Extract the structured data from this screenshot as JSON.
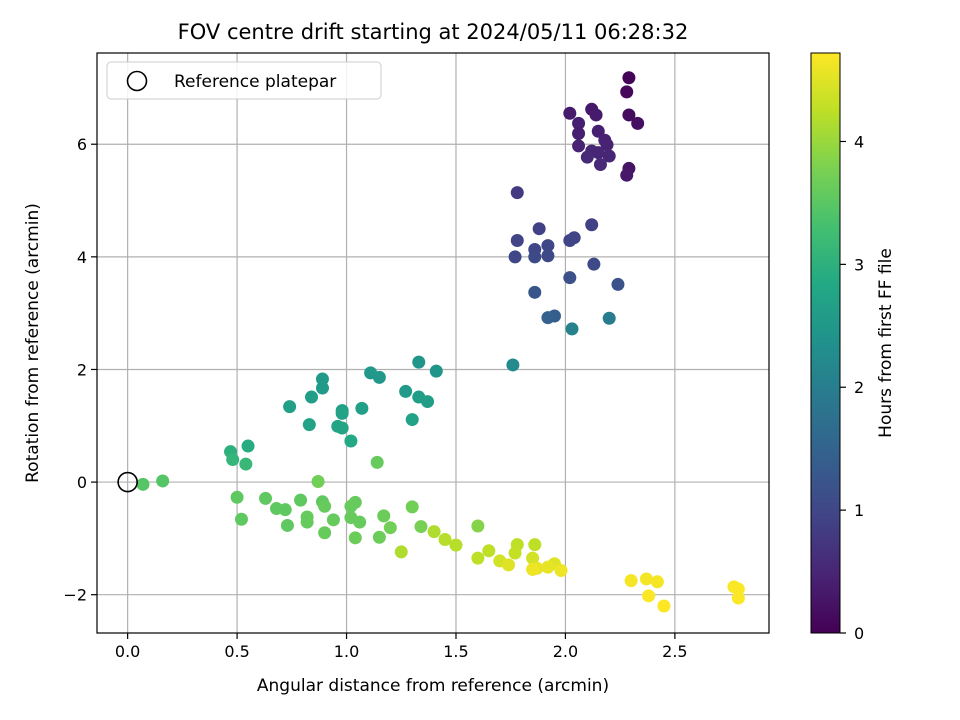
{
  "chart_data": {
    "type": "scatter",
    "title": "FOV centre drift starting at 2024/05/11 06:28:32",
    "xlabel": "Angular distance from reference (arcmin)",
    "ylabel": "Rotation from reference (arcmin)",
    "xlim": [
      -0.14,
      2.93
    ],
    "ylim": [
      -2.68,
      7.62
    ],
    "xticks": [
      0.0,
      0.5,
      1.0,
      1.5,
      2.0,
      2.5
    ],
    "yticks": [
      -2,
      0,
      2,
      4,
      6
    ],
    "xtick_labels": [
      "0.0",
      "0.5",
      "1.0",
      "1.5",
      "2.0",
      "2.5"
    ],
    "ytick_labels": [
      "−2",
      "0",
      "2",
      "4",
      "6"
    ],
    "grid": true,
    "legend": {
      "position": "top-left",
      "entries": [
        "Reference platepar"
      ]
    },
    "reference_point": {
      "x": 0.0,
      "y": 0.0
    },
    "colorbar": {
      "label": "Hours from first FF file",
      "colormap": "viridis",
      "range": [
        0,
        4.72
      ],
      "ticks": [
        0,
        1,
        2,
        3,
        4
      ],
      "tick_labels": [
        "0",
        "1",
        "2",
        "3",
        "4"
      ]
    },
    "series": [
      {
        "points": [
          {
            "x": 2.29,
            "y": 7.18,
            "c": 0.05
          },
          {
            "x": 2.28,
            "y": 6.93,
            "c": 0.1
          },
          {
            "x": 2.29,
            "y": 6.52,
            "c": 0.15
          },
          {
            "x": 2.33,
            "y": 6.37,
            "c": 0.2
          },
          {
            "x": 2.29,
            "y": 5.57,
            "c": 0.25
          },
          {
            "x": 2.28,
            "y": 5.45,
            "c": 0.3
          },
          {
            "x": 2.12,
            "y": 6.62,
            "c": 0.3
          },
          {
            "x": 2.14,
            "y": 6.52,
            "c": 0.35
          },
          {
            "x": 2.02,
            "y": 6.55,
            "c": 0.35
          },
          {
            "x": 2.06,
            "y": 6.37,
            "c": 0.4
          },
          {
            "x": 2.06,
            "y": 6.19,
            "c": 0.4
          },
          {
            "x": 2.15,
            "y": 6.23,
            "c": 0.4
          },
          {
            "x": 2.18,
            "y": 6.07,
            "c": 0.45
          },
          {
            "x": 2.06,
            "y": 5.97,
            "c": 0.45
          },
          {
            "x": 2.19,
            "y": 5.99,
            "c": 0.45
          },
          {
            "x": 2.12,
            "y": 5.88,
            "c": 0.5
          },
          {
            "x": 2.15,
            "y": 5.85,
            "c": 0.5
          },
          {
            "x": 2.2,
            "y": 5.79,
            "c": 0.5
          },
          {
            "x": 2.1,
            "y": 5.77,
            "c": 0.55
          },
          {
            "x": 2.16,
            "y": 5.64,
            "c": 0.55
          },
          {
            "x": 1.78,
            "y": 5.14,
            "c": 0.8
          },
          {
            "x": 2.12,
            "y": 4.57,
            "c": 0.9
          },
          {
            "x": 1.88,
            "y": 4.5,
            "c": 0.9
          },
          {
            "x": 2.04,
            "y": 4.34,
            "c": 0.95
          },
          {
            "x": 2.02,
            "y": 4.29,
            "c": 0.95
          },
          {
            "x": 1.78,
            "y": 4.29,
            "c": 0.95
          },
          {
            "x": 1.92,
            "y": 4.2,
            "c": 1.0
          },
          {
            "x": 1.86,
            "y": 4.13,
            "c": 1.0
          },
          {
            "x": 1.77,
            "y": 4.0,
            "c": 1.0
          },
          {
            "x": 1.86,
            "y": 4.0,
            "c": 1.05
          },
          {
            "x": 1.92,
            "y": 4.02,
            "c": 1.05
          },
          {
            "x": 2.13,
            "y": 3.87,
            "c": 1.05
          },
          {
            "x": 2.02,
            "y": 3.63,
            "c": 1.15
          },
          {
            "x": 2.24,
            "y": 3.51,
            "c": 1.2
          },
          {
            "x": 1.86,
            "y": 3.37,
            "c": 1.25
          },
          {
            "x": 1.95,
            "y": 2.95,
            "c": 1.4
          },
          {
            "x": 1.92,
            "y": 2.92,
            "c": 1.45
          },
          {
            "x": 2.2,
            "y": 2.91,
            "c": 1.95
          },
          {
            "x": 2.03,
            "y": 2.72,
            "c": 2.1
          },
          {
            "x": 1.76,
            "y": 2.08,
            "c": 2.25
          },
          {
            "x": 1.33,
            "y": 2.13,
            "c": 2.45
          },
          {
            "x": 1.41,
            "y": 1.97,
            "c": 2.45
          },
          {
            "x": 1.11,
            "y": 1.94,
            "c": 2.5
          },
          {
            "x": 1.15,
            "y": 1.86,
            "c": 2.5
          },
          {
            "x": 0.89,
            "y": 1.83,
            "c": 2.55
          },
          {
            "x": 0.89,
            "y": 1.67,
            "c": 2.55
          },
          {
            "x": 1.27,
            "y": 1.61,
            "c": 2.55
          },
          {
            "x": 0.84,
            "y": 1.51,
            "c": 2.6
          },
          {
            "x": 1.33,
            "y": 1.51,
            "c": 2.6
          },
          {
            "x": 1.37,
            "y": 1.43,
            "c": 2.6
          },
          {
            "x": 0.74,
            "y": 1.34,
            "c": 2.65
          },
          {
            "x": 1.07,
            "y": 1.31,
            "c": 2.65
          },
          {
            "x": 0.98,
            "y": 1.27,
            "c": 2.65
          },
          {
            "x": 0.98,
            "y": 1.22,
            "c": 2.7
          },
          {
            "x": 1.3,
            "y": 1.11,
            "c": 2.7
          },
          {
            "x": 0.83,
            "y": 1.02,
            "c": 2.7
          },
          {
            "x": 0.96,
            "y": 0.99,
            "c": 2.75
          },
          {
            "x": 0.98,
            "y": 0.96,
            "c": 2.75
          },
          {
            "x": 1.02,
            "y": 0.73,
            "c": 2.85
          },
          {
            "x": 0.55,
            "y": 0.64,
            "c": 2.9
          },
          {
            "x": 0.47,
            "y": 0.54,
            "c": 3.0
          },
          {
            "x": 0.48,
            "y": 0.4,
            "c": 3.1
          },
          {
            "x": 0.54,
            "y": 0.32,
            "c": 3.15
          },
          {
            "x": 1.14,
            "y": 0.35,
            "c": 3.6
          },
          {
            "x": 0.07,
            "y": -0.04,
            "c": 3.45
          },
          {
            "x": 0.16,
            "y": 0.02,
            "c": 3.45
          },
          {
            "x": 0.87,
            "y": 0.01,
            "c": 3.7
          },
          {
            "x": 0.5,
            "y": -0.27,
            "c": 3.55
          },
          {
            "x": 0.63,
            "y": -0.29,
            "c": 3.55
          },
          {
            "x": 0.79,
            "y": -0.32,
            "c": 3.55
          },
          {
            "x": 0.89,
            "y": -0.35,
            "c": 3.55
          },
          {
            "x": 1.04,
            "y": -0.36,
            "c": 3.6
          },
          {
            "x": 1.02,
            "y": -0.43,
            "c": 3.6
          },
          {
            "x": 0.9,
            "y": -0.43,
            "c": 3.6
          },
          {
            "x": 0.68,
            "y": -0.47,
            "c": 3.55
          },
          {
            "x": 0.72,
            "y": -0.49,
            "c": 3.55
          },
          {
            "x": 1.3,
            "y": -0.44,
            "c": 3.7
          },
          {
            "x": 0.82,
            "y": -0.62,
            "c": 3.6
          },
          {
            "x": 1.17,
            "y": -0.6,
            "c": 3.65
          },
          {
            "x": 0.52,
            "y": -0.66,
            "c": 3.55
          },
          {
            "x": 1.02,
            "y": -0.63,
            "c": 3.6
          },
          {
            "x": 0.94,
            "y": -0.67,
            "c": 3.6
          },
          {
            "x": 0.82,
            "y": -0.71,
            "c": 3.6
          },
          {
            "x": 1.06,
            "y": -0.71,
            "c": 3.6
          },
          {
            "x": 0.73,
            "y": -0.77,
            "c": 3.55
          },
          {
            "x": 1.2,
            "y": -0.81,
            "c": 3.7
          },
          {
            "x": 1.34,
            "y": -0.79,
            "c": 3.75
          },
          {
            "x": 1.6,
            "y": -0.78,
            "c": 3.85
          },
          {
            "x": 1.4,
            "y": -0.88,
            "c": 4.15
          },
          {
            "x": 0.9,
            "y": -0.9,
            "c": 3.6
          },
          {
            "x": 1.15,
            "y": -0.98,
            "c": 3.65
          },
          {
            "x": 1.04,
            "y": -0.99,
            "c": 3.65
          },
          {
            "x": 1.45,
            "y": -1.02,
            "c": 4.2
          },
          {
            "x": 1.5,
            "y": -1.12,
            "c": 4.2
          },
          {
            "x": 1.78,
            "y": -1.11,
            "c": 4.25
          },
          {
            "x": 1.86,
            "y": -1.11,
            "c": 4.25
          },
          {
            "x": 1.25,
            "y": -1.24,
            "c": 4.15
          },
          {
            "x": 1.65,
            "y": -1.22,
            "c": 4.25
          },
          {
            "x": 1.77,
            "y": -1.26,
            "c": 4.3
          },
          {
            "x": 1.6,
            "y": -1.35,
            "c": 4.25
          },
          {
            "x": 1.7,
            "y": -1.4,
            "c": 4.4
          },
          {
            "x": 1.85,
            "y": -1.35,
            "c": 4.4
          },
          {
            "x": 1.74,
            "y": -1.47,
            "c": 4.5
          },
          {
            "x": 1.95,
            "y": -1.45,
            "c": 4.5
          },
          {
            "x": 1.92,
            "y": -1.51,
            "c": 4.55
          },
          {
            "x": 1.87,
            "y": -1.53,
            "c": 4.55
          },
          {
            "x": 1.85,
            "y": -1.55,
            "c": 4.6
          },
          {
            "x": 1.98,
            "y": -1.57,
            "c": 4.6
          },
          {
            "x": 2.3,
            "y": -1.75,
            "c": 4.65
          },
          {
            "x": 2.37,
            "y": -1.72,
            "c": 4.65
          },
          {
            "x": 2.42,
            "y": -1.77,
            "c": 4.65
          },
          {
            "x": 2.77,
            "y": -1.86,
            "c": 4.7
          },
          {
            "x": 2.79,
            "y": -1.9,
            "c": 4.7
          },
          {
            "x": 2.38,
            "y": -2.02,
            "c": 4.7
          },
          {
            "x": 2.79,
            "y": -2.06,
            "c": 4.7
          },
          {
            "x": 2.45,
            "y": -2.2,
            "c": 4.72
          }
        ]
      }
    ]
  },
  "colors": {
    "reference_marker": "#000000",
    "grid": "#b0b0b0",
    "axes": "#000000"
  }
}
